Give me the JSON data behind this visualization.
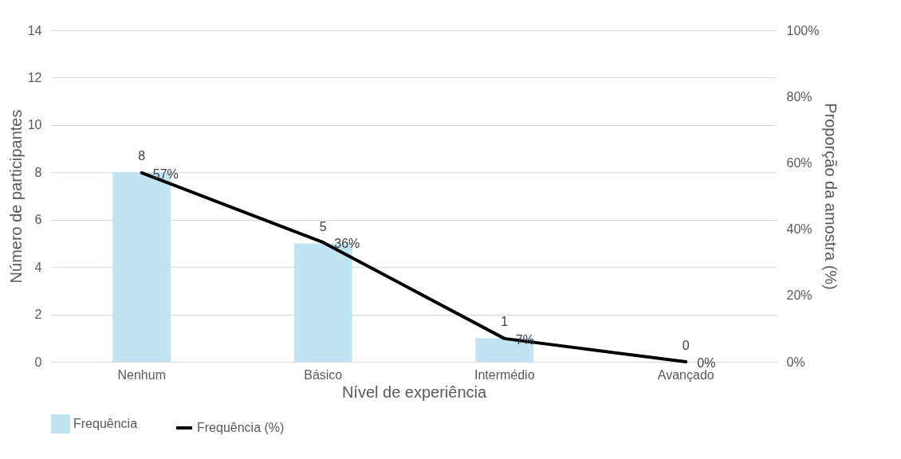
{
  "chart_data": {
    "type": "bar",
    "categories": [
      "Nenhum",
      "Básico",
      "Intermédio",
      "Avançado"
    ],
    "series": [
      {
        "name": "Frequência",
        "color": "#c0e4f4",
        "values": [
          8,
          5,
          1,
          0
        ],
        "value_labels": [
          "8",
          "5",
          "1",
          "0"
        ]
      },
      {
        "name": "Frequência (%)",
        "type": "line",
        "axis": "y2",
        "color": "#000000",
        "values": [
          57,
          36,
          7,
          0
        ],
        "value_labels": [
          "57%",
          "36%",
          "7%",
          "0%"
        ]
      }
    ],
    "xlabel": "Nível de experiência",
    "ylabel": "Número de participantes",
    "y2label": "Proporção da amostra (%)",
    "ylim": [
      0,
      14
    ],
    "yticks": [
      0,
      2,
      4,
      6,
      8,
      10,
      12,
      14
    ],
    "y2lim": [
      0,
      100
    ],
    "y2ticks": [
      {
        "value": 0,
        "label": "0%"
      },
      {
        "value": 20,
        "label": "20%"
      },
      {
        "value": 40,
        "label": "40%"
      },
      {
        "value": 60,
        "label": "60%"
      },
      {
        "value": 80,
        "label": "80%"
      },
      {
        "value": 100,
        "label": "100%"
      }
    ],
    "grid": "y",
    "legend": "bottom",
    "line_style": "solid",
    "marker": "none"
  }
}
